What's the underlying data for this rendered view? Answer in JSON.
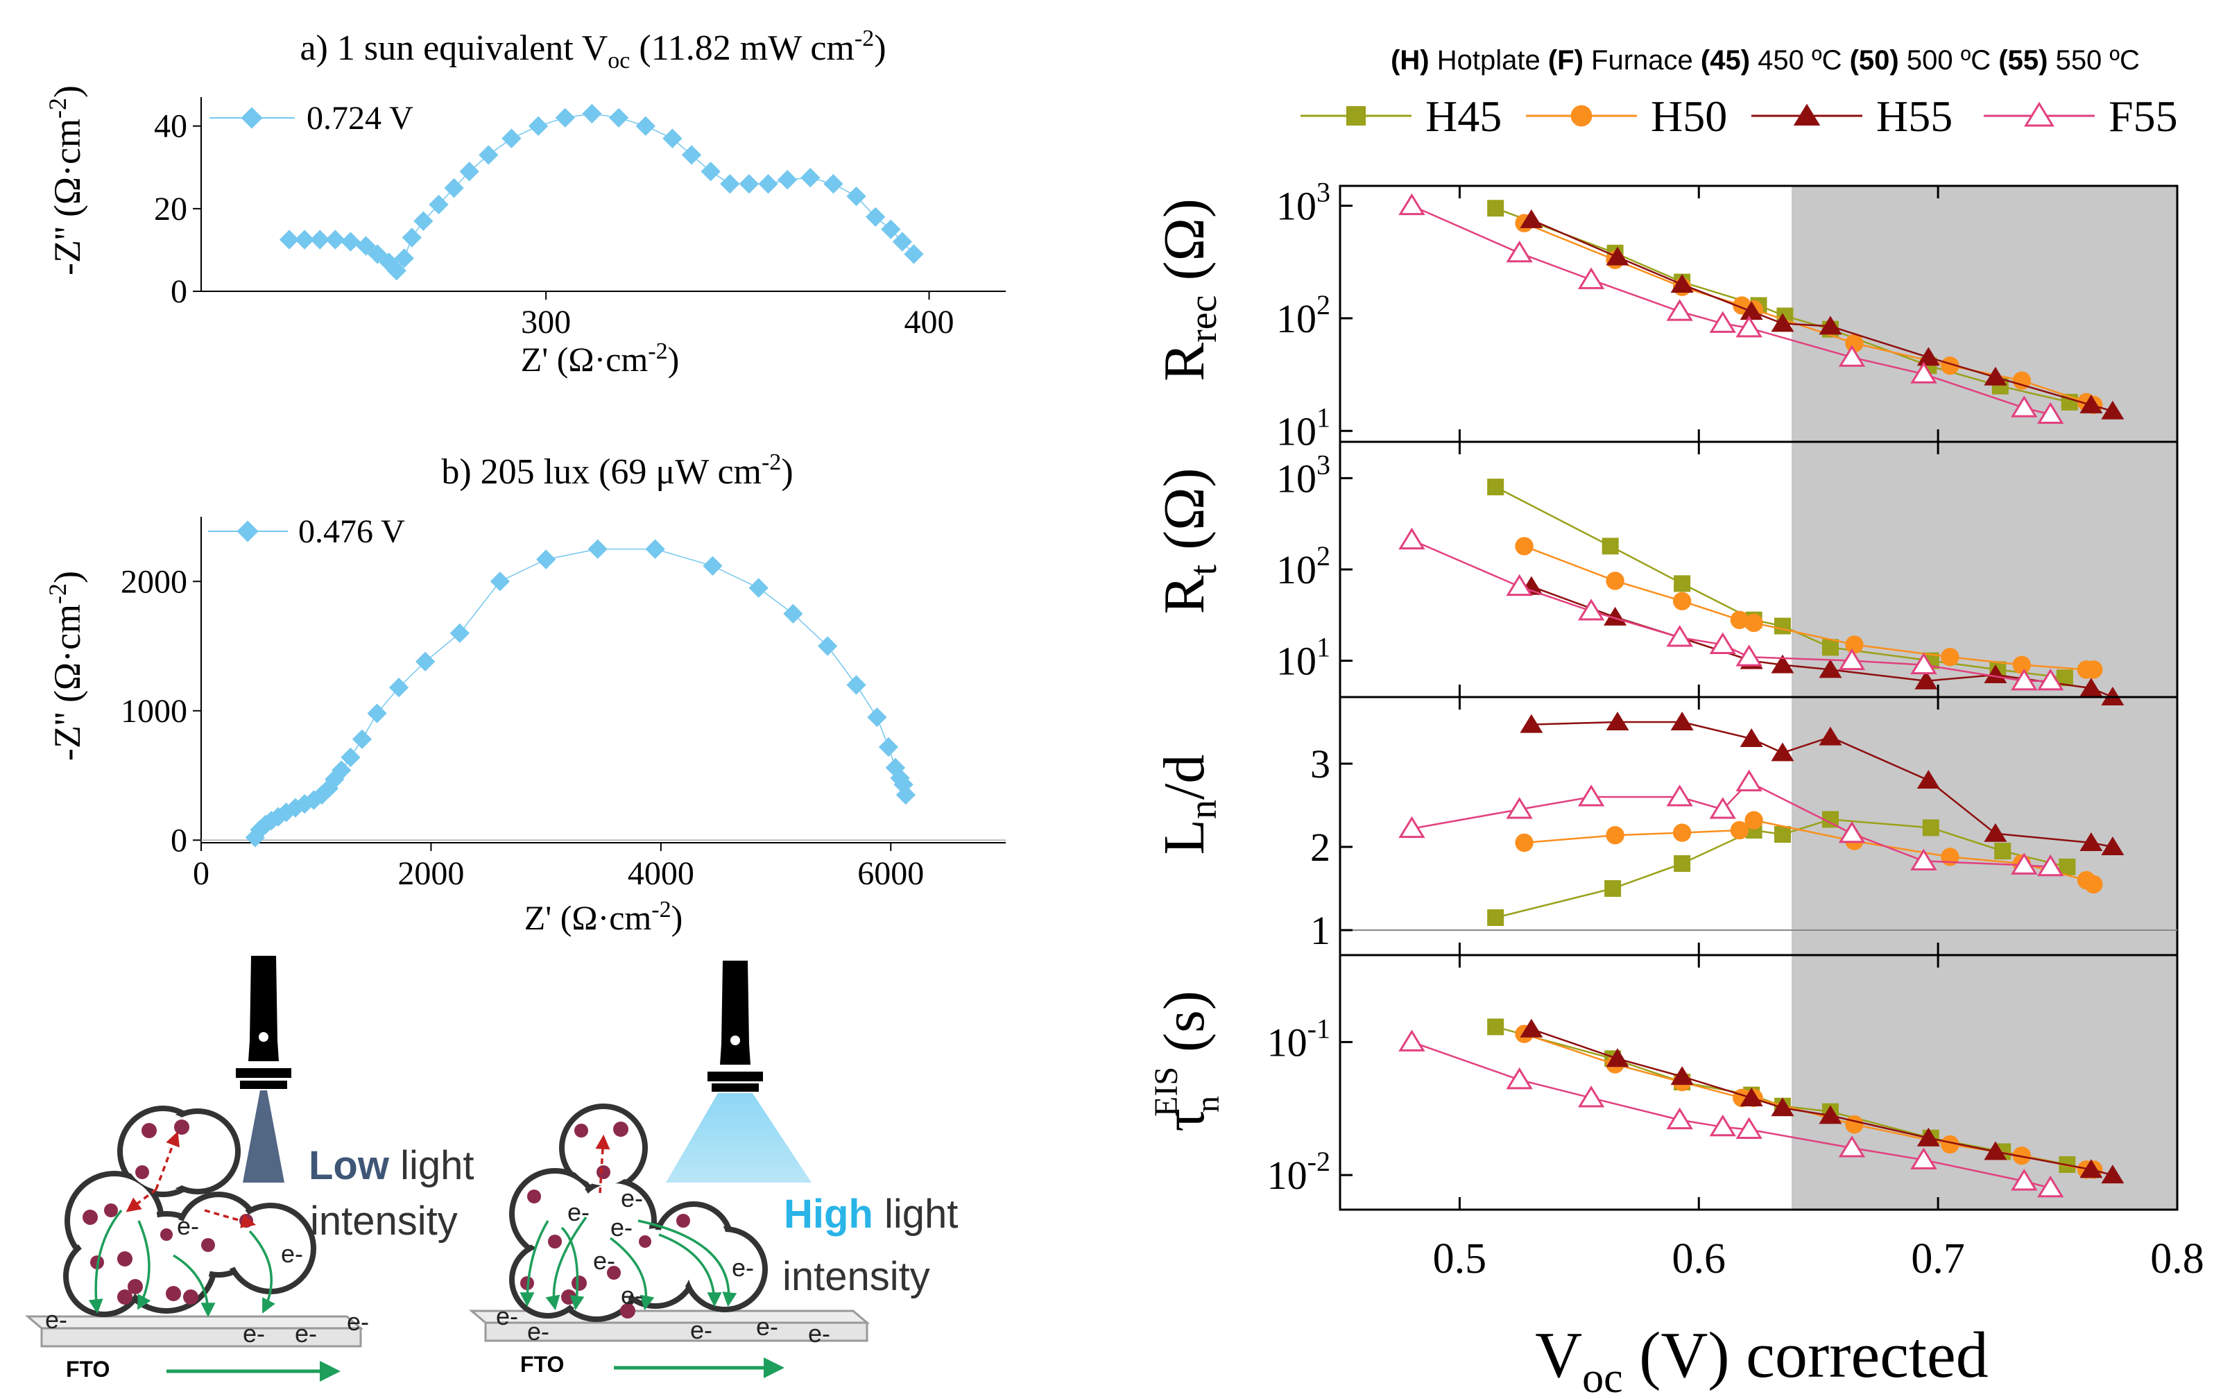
{
  "colors": {
    "nyquist": "#74C7EE",
    "H45": "#9AA11A",
    "H50": "#FA8F1E",
    "H55": "#8E0E0E",
    "F55": "#E2407E",
    "shade": "#C8C8C8",
    "low_light": "#3F5677",
    "high_light": "#2AB4E8",
    "arrow_green": "#1E9E5B",
    "arrow_red": "#C42020",
    "particle": "#8C2A4B"
  },
  "panel_a": {
    "title_main": "a) 1 sun equivalent V",
    "title_sub": "oc",
    "title_rest": " (11.82 mW cm",
    "title_sup": "-2",
    "title_end": ")",
    "legend": "0.724 V",
    "ylabel": "-Z'' (Ω·cm",
    "ylabel_sup": "-2",
    "ylabel_end": ")",
    "xlabel": "Z' (Ω·cm",
    "xlabel_sup": "-2",
    "xlabel_end": ")",
    "yticks": [
      "0",
      "20",
      "40"
    ],
    "xticks": [
      "300",
      "400"
    ]
  },
  "panel_b": {
    "title_main": "b) 205 lux (69 μW cm",
    "title_sup": "-2",
    "title_end": ")",
    "legend": "0.476 V",
    "ylabel": "-Z'' (Ω·cm",
    "ylabel_sup": "-2",
    "ylabel_end": ")",
    "xlabel": "Z' (Ω·cm",
    "xlabel_sup": "-2",
    "xlabel_end": ")",
    "yticks": [
      "0",
      "1000",
      "2000"
    ],
    "xticks": [
      "0",
      "2000",
      "4000",
      "6000"
    ]
  },
  "schematic": {
    "low_word": "Low",
    "low_rest": " light",
    "low_line2": "intensity",
    "high_word": "High",
    "high_rest": " light",
    "high_line2": "intensity",
    "fto": "FTO",
    "electron": "e-"
  },
  "right": {
    "legend_title": [
      {
        "b": "(H)",
        "t": " Hotplate "
      },
      {
        "b": "(F)",
        "t": " Furnace "
      },
      {
        "b": "(45)",
        "t": " 450 ºC "
      },
      {
        "b": "(50)",
        "t": " 500 ºC "
      },
      {
        "b": "(55)",
        "t": " 550 ºC"
      }
    ],
    "series_names": [
      "H45",
      "H50",
      "H55",
      "F55"
    ],
    "ylabels": {
      "rrec": {
        "main": "R",
        "sub": "rec",
        "rest": " (Ω)"
      },
      "rt": {
        "main": "R",
        "sub": "t",
        "rest": " (Ω)"
      },
      "ln": {
        "main": "L",
        "sub": "n",
        "rest": "/d"
      },
      "tau": {
        "main": "τ",
        "sub": "n",
        "sup": "EIS",
        "rest": " (s)"
      }
    },
    "xlabel": {
      "main": "V",
      "sub": "oc",
      "rest": " (V) corrected"
    },
    "xticks": [
      "0.5",
      "0.6",
      "0.7",
      "0.8"
    ],
    "yticks_rrec": [
      {
        "b": "10",
        "e": "1"
      },
      {
        "b": "10",
        "e": "2"
      },
      {
        "b": "10",
        "e": "3"
      }
    ],
    "yticks_rt": [
      {
        "b": "10",
        "e": "1"
      },
      {
        "b": "10",
        "e": "2"
      },
      {
        "b": "10",
        "e": "3"
      }
    ],
    "yticks_ln": [
      "1",
      "2",
      "3"
    ],
    "yticks_tau": [
      {
        "b": "10",
        "e": "-2"
      },
      {
        "b": "10",
        "e": "-1"
      }
    ]
  },
  "chart_data": [
    {
      "type": "scatter",
      "xlim": [
        210,
        420
      ],
      "ylim": [
        0,
        47
      ],
      "series": [
        {
          "name": "0.724 V",
          "x": [
            233,
            237,
            241,
            245,
            249,
            253,
            256,
            259,
            261,
            263,
            265,
            268,
            272,
            276,
            280,
            285,
            291,
            298,
            305,
            312,
            319,
            326,
            333,
            338,
            343,
            348,
            353,
            358,
            363,
            369,
            375,
            381,
            386,
            390,
            393,
            396
          ],
          "y": [
            12.5,
            12.5,
            12.5,
            12.5,
            12,
            11,
            9,
            7,
            5,
            8,
            13,
            17,
            21,
            25,
            29,
            33,
            37,
            40,
            42,
            43,
            42,
            40,
            37,
            33,
            29,
            26,
            26,
            26,
            27,
            27.5,
            26,
            23,
            18,
            15,
            12,
            9
          ]
        }
      ]
    },
    {
      "type": "scatter",
      "xlim": [
        0,
        7000
      ],
      "ylim": [
        -20,
        2500
      ],
      "series": [
        {
          "name": "0.476 V",
          "x": [
            470,
            510,
            560,
            610,
            670,
            740,
            820,
            900,
            980,
            1050,
            1110,
            1160,
            1220,
            1300,
            1400,
            1530,
            1720,
            1950,
            2250,
            2600,
            3000,
            3450,
            3950,
            4450,
            4850,
            5150,
            5450,
            5700,
            5880,
            5980,
            6040,
            6080,
            6110,
            6130
          ],
          "y": [
            20,
            80,
            120,
            150,
            180,
            215,
            250,
            280,
            310,
            350,
            400,
            470,
            540,
            640,
            780,
            980,
            1180,
            1380,
            1600,
            2000,
            2170,
            2250,
            2250,
            2120,
            1950,
            1750,
            1500,
            1200,
            950,
            720,
            560,
            480,
            430,
            350
          ]
        }
      ]
    },
    {
      "type": "line",
      "title": "R_rec (Ω)",
      "log_y": true,
      "xlim": [
        0.45,
        0.8
      ],
      "ylim": [
        8,
        1500
      ],
      "shaded_region_x": [
        0.64,
        0.8
      ],
      "series": [
        {
          "name": "H45",
          "marker": "square",
          "x": [
            0.515,
            0.565,
            0.593,
            0.625,
            0.636,
            0.655,
            0.696,
            0.726,
            0.755
          ],
          "y": [
            950,
            380,
            210,
            130,
            105,
            80,
            38,
            25,
            18
          ]
        },
        {
          "name": "H50",
          "marker": "circle",
          "x": [
            0.527,
            0.565,
            0.593,
            0.618,
            0.623,
            0.665,
            0.705,
            0.735,
            0.762,
            0.765
          ],
          "y": [
            700,
            330,
            190,
            130,
            120,
            60,
            38,
            28,
            18,
            17
          ]
        },
        {
          "name": "H55",
          "marker": "triangle",
          "x": [
            0.53,
            0.566,
            0.593,
            0.622,
            0.635,
            0.655,
            0.696,
            0.724,
            0.764,
            0.773
          ],
          "y": [
            750,
            350,
            200,
            115,
            90,
            85,
            45,
            30,
            17,
            15
          ]
        },
        {
          "name": "F55",
          "marker": "open-triangle",
          "x": [
            0.48,
            0.525,
            0.555,
            0.592,
            0.61,
            0.621,
            0.664,
            0.694,
            0.736,
            0.747
          ],
          "y": [
            1000,
            380,
            220,
            115,
            90,
            82,
            45,
            32,
            16,
            14
          ]
        }
      ]
    },
    {
      "type": "line",
      "title": "R_t (Ω)",
      "log_y": true,
      "xlim": [
        0.45,
        0.8
      ],
      "ylim": [
        4,
        2500
      ],
      "shaded_region_x": [
        0.64,
        0.8
      ],
      "series": [
        {
          "name": "H45",
          "marker": "square",
          "x": [
            0.515,
            0.563,
            0.593,
            0.623,
            0.635,
            0.655,
            0.697,
            0.725,
            0.753
          ],
          "y": [
            800,
            180,
            70,
            28,
            24,
            14,
            10,
            8,
            6.5
          ]
        },
        {
          "name": "H50",
          "marker": "circle",
          "x": [
            0.527,
            0.565,
            0.593,
            0.617,
            0.623,
            0.665,
            0.705,
            0.735,
            0.762,
            0.765
          ],
          "y": [
            180,
            75,
            45,
            28,
            26,
            15,
            11,
            9,
            8,
            8
          ]
        },
        {
          "name": "H55",
          "marker": "triangle",
          "x": [
            0.53,
            0.565,
            0.592,
            0.622,
            0.635,
            0.655,
            0.695,
            0.724,
            0.764,
            0.773
          ],
          "y": [
            65,
            30,
            18,
            10,
            9,
            8,
            6,
            7,
            5,
            4
          ]
        },
        {
          "name": "F55",
          "marker": "open-triangle",
          "x": [
            0.48,
            0.525,
            0.555,
            0.592,
            0.61,
            0.621,
            0.664,
            0.694,
            0.736,
            0.747
          ],
          "y": [
            210,
            65,
            35,
            18,
            15,
            11,
            10,
            9,
            6,
            6
          ]
        }
      ]
    },
    {
      "type": "line",
      "title": "L_n/d",
      "xlim": [
        0.45,
        0.8
      ],
      "ylim": [
        0.7,
        3.8
      ],
      "reference_line_y": 1,
      "shaded_region_x": [
        0.64,
        0.8
      ],
      "series": [
        {
          "name": "H45",
          "marker": "square",
          "x": [
            0.515,
            0.564,
            0.593,
            0.623,
            0.635,
            0.655,
            0.697,
            0.727,
            0.754
          ],
          "y": [
            1.15,
            1.5,
            1.8,
            2.2,
            2.15,
            2.33,
            2.23,
            1.95,
            1.76
          ]
        },
        {
          "name": "H50",
          "marker": "circle",
          "x": [
            0.527,
            0.565,
            0.593,
            0.617,
            0.623,
            0.665,
            0.705,
            0.735,
            0.762,
            0.765
          ],
          "y": [
            2.05,
            2.14,
            2.17,
            2.2,
            2.32,
            2.07,
            1.88,
            1.8,
            1.6,
            1.55
          ]
        },
        {
          "name": "H55",
          "marker": "triangle",
          "x": [
            0.53,
            0.566,
            0.593,
            0.622,
            0.635,
            0.655,
            0.696,
            0.724,
            0.764,
            0.773
          ],
          "y": [
            3.47,
            3.5,
            3.5,
            3.3,
            3.13,
            3.32,
            2.8,
            2.16,
            2.05,
            2.0
          ]
        },
        {
          "name": "F55",
          "marker": "open-triangle",
          "x": [
            0.48,
            0.525,
            0.555,
            0.592,
            0.61,
            0.621,
            0.664,
            0.694,
            0.736,
            0.747
          ],
          "y": [
            2.22,
            2.45,
            2.6,
            2.6,
            2.45,
            2.78,
            2.16,
            1.83,
            1.78,
            1.76
          ]
        }
      ]
    },
    {
      "type": "line",
      "title": "τ_n^EIS (s)",
      "log_y": true,
      "xlim": [
        0.45,
        0.8
      ],
      "ylim": [
        0.0055,
        0.45
      ],
      "shaded_region_x": [
        0.64,
        0.8
      ],
      "series": [
        {
          "name": "H45",
          "marker": "square",
          "x": [
            0.515,
            0.564,
            0.593,
            0.622,
            0.635,
            0.655,
            0.697,
            0.727,
            0.754
          ],
          "y": [
            0.13,
            0.075,
            0.05,
            0.04,
            0.033,
            0.03,
            0.019,
            0.015,
            0.012
          ]
        },
        {
          "name": "H50",
          "marker": "circle",
          "x": [
            0.527,
            0.565,
            0.593,
            0.618,
            0.623,
            0.665,
            0.705,
            0.735,
            0.762,
            0.765
          ],
          "y": [
            0.115,
            0.068,
            0.05,
            0.038,
            0.038,
            0.024,
            0.017,
            0.014,
            0.011,
            0.011
          ]
        },
        {
          "name": "H55",
          "marker": "triangle",
          "x": [
            0.53,
            0.566,
            0.593,
            0.622,
            0.635,
            0.655,
            0.696,
            0.724,
            0.764,
            0.773
          ],
          "y": [
            0.125,
            0.075,
            0.055,
            0.038,
            0.032,
            0.028,
            0.019,
            0.015,
            0.011,
            0.01
          ]
        },
        {
          "name": "F55",
          "marker": "open-triangle",
          "x": [
            0.48,
            0.525,
            0.555,
            0.592,
            0.61,
            0.621,
            0.664,
            0.694,
            0.736,
            0.747
          ],
          "y": [
            0.1,
            0.052,
            0.038,
            0.026,
            0.023,
            0.022,
            0.016,
            0.013,
            0.009,
            0.008
          ]
        }
      ]
    }
  ]
}
